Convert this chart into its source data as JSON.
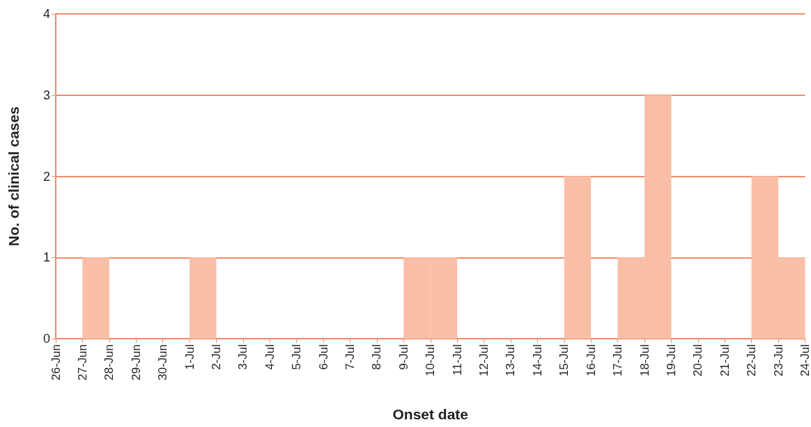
{
  "chart_data": {
    "type": "bar",
    "xlabel": "Onset date",
    "ylabel": "No. of clinical cases",
    "categories": [
      "26-Jun",
      "27-Jun",
      "28-Jun",
      "29-Jun",
      "30-Jun",
      "1-Jul",
      "2-Jul",
      "3-Jul",
      "4-Jul",
      "5-Jul",
      "6-Jul",
      "7-Jul",
      "8-Jul",
      "9-Jul",
      "10-Jul",
      "11-Jul",
      "12-Jul",
      "13-Jul",
      "14-Jul",
      "15-Jul",
      "16-Jul",
      "17-Jul",
      "18-Jul",
      "19-Jul",
      "20-Jul",
      "21-Jul",
      "22-Jul",
      "23-Jul",
      "24-Jul"
    ],
    "values": [
      0,
      1,
      0,
      0,
      0,
      1,
      0,
      0,
      0,
      0,
      0,
      0,
      0,
      1,
      1,
      0,
      0,
      0,
      0,
      2,
      0,
      1,
      3,
      0,
      0,
      0,
      2,
      1,
      null
    ],
    "color": "#f9bfa6",
    "ylim": [
      0,
      4
    ],
    "yticks": [
      0,
      1,
      2,
      3,
      4
    ],
    "grid": "y"
  }
}
